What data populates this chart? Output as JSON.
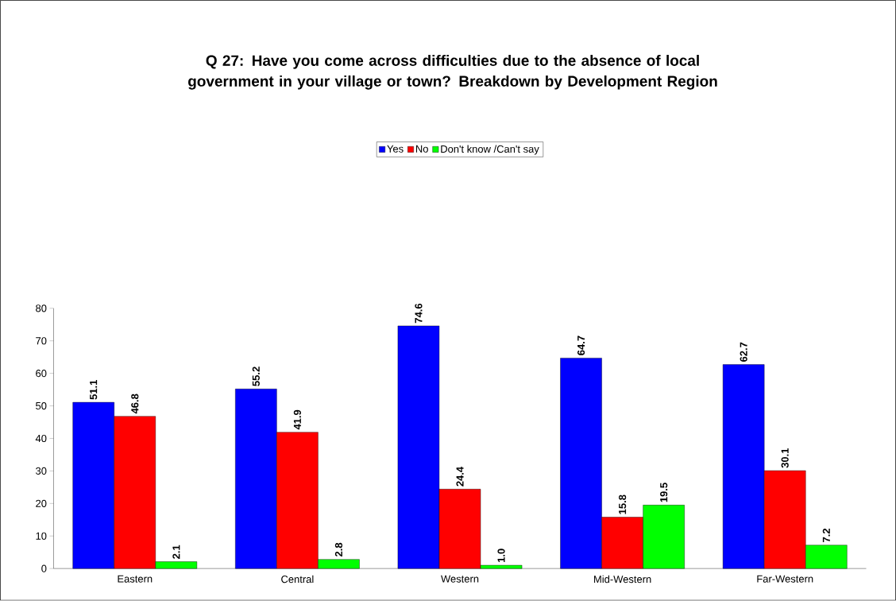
{
  "chart_data": {
    "type": "bar",
    "title": "Q 27: Have you come across difficulties due to the absence of local government in your village or town? Breakdown by Development Region",
    "categories": [
      "Eastern",
      "Central",
      "Western",
      "Mid-Western",
      "Far-Western"
    ],
    "series": [
      {
        "name": "Yes",
        "color": "#0000ff",
        "values": [
          51.1,
          55.2,
          74.6,
          64.7,
          62.7
        ],
        "value_labels": [
          "51.1",
          "55.2",
          "74.6",
          "64.7",
          "62.7"
        ]
      },
      {
        "name": "No",
        "color": "#ff0000",
        "values": [
          46.8,
          41.9,
          24.4,
          15.8,
          30.1
        ],
        "value_labels": [
          "46.8",
          "41.9",
          "24.4",
          "15.8",
          "30.1"
        ]
      },
      {
        "name": "Don't know /Can't say",
        "color": "#00ff00",
        "values": [
          2.1,
          2.8,
          1.0,
          19.5,
          7.2
        ],
        "value_labels": [
          "2.1",
          "2.8",
          "1.0",
          "19.5",
          "7.2"
        ]
      }
    ],
    "ylim": [
      0,
      80
    ],
    "yticks": [
      0,
      10,
      20,
      30,
      40,
      50,
      60,
      70,
      80
    ],
    "grid": false,
    "legend": "top"
  }
}
